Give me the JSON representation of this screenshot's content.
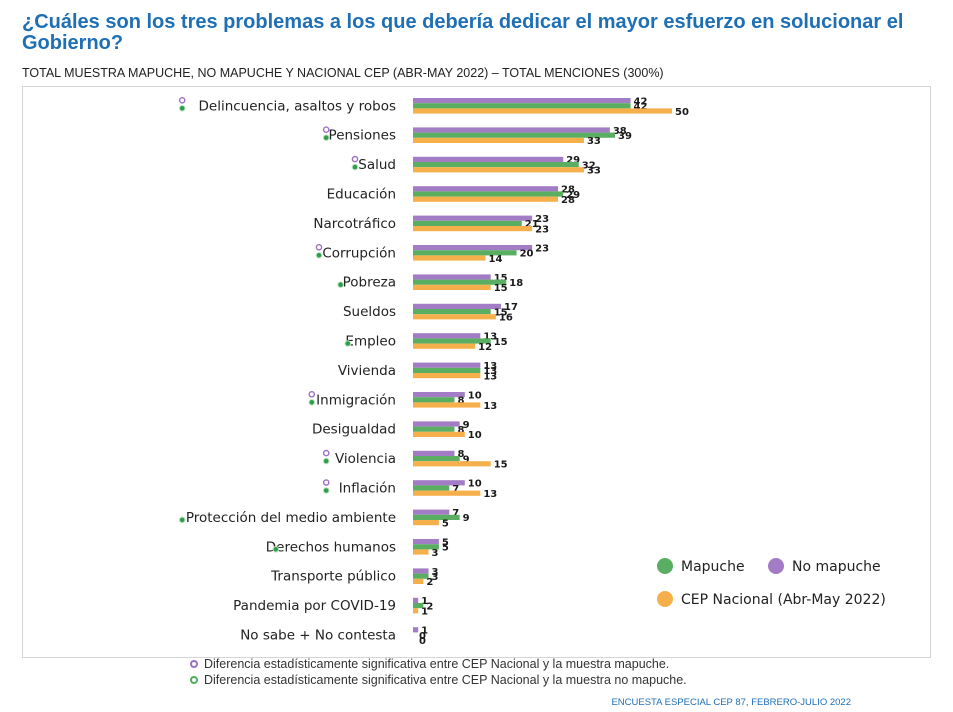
{
  "title": "¿Cuáles son los tres problemas a los que debería dedicar el mayor esfuerzo en solucionar el Gobierno?",
  "subtitle": "TOTAL MUESTRA MAPUCHE, NO MAPUCHE Y NACIONAL CEP (ABR-MAY 2022)  – TOTAL MENCIONES (300%)",
  "footnotes": {
    "purple": "Diferencia estadísticamente significativa entre CEP Nacional y la muestra mapuche.",
    "green": "Diferencia estadísticamente significativa entre CEP Nacional y la muestra no mapuche."
  },
  "source": "ENCUESTA ESPECIAL CEP 87, FEBRERO-JULIO 2022",
  "colors": {
    "mapuche": "#5aae61",
    "no_mapuche": "#a37cc6",
    "cep": "#f6b04b",
    "title": "#1f6fb5",
    "marker_purple": "#9b6fc4",
    "marker_green": "#2f9e4a"
  },
  "chart_data": {
    "type": "bar",
    "orientation": "horizontal",
    "categories": [
      "Delincuencia, asaltos y robos",
      "Pensiones",
      "Salud",
      "Educación",
      "Narcotráfico",
      "Corrupción",
      "Pobreza",
      "Sueldos",
      "Empleo",
      "Vivienda",
      "Inmigración",
      "Desigualdad",
      "Violencia",
      "Inflación",
      "Protección del medio ambiente",
      "Derechos humanos",
      "Transporte público",
      "Pandemia por COVID-19",
      "No sabe + No contesta"
    ],
    "series": [
      {
        "name": "No mapuche",
        "values": [
          42,
          38,
          29,
          28,
          23,
          23,
          15,
          17,
          13,
          13,
          10,
          9,
          8,
          10,
          7,
          5,
          3,
          1,
          1
        ]
      },
      {
        "name": "Mapuche",
        "values": [
          42,
          39,
          32,
          29,
          21,
          20,
          18,
          15,
          15,
          13,
          8,
          8,
          9,
          7,
          9,
          5,
          3,
          2,
          0
        ]
      },
      {
        "name": "CEP Nacional (Abr-May 2022)",
        "values": [
          50,
          33,
          33,
          28,
          23,
          14,
          15,
          16,
          12,
          13,
          13,
          10,
          15,
          13,
          5,
          3,
          2,
          1,
          0
        ]
      }
    ],
    "significance_markers": {
      "purple": [
        true,
        true,
        true,
        false,
        false,
        true,
        false,
        false,
        false,
        false,
        true,
        false,
        true,
        true,
        false,
        false,
        false,
        false,
        false
      ],
      "green": [
        true,
        true,
        true,
        false,
        false,
        true,
        true,
        false,
        true,
        false,
        true,
        false,
        true,
        true,
        true,
        true,
        false,
        false,
        false
      ]
    },
    "legend": {
      "items": [
        "Mapuche",
        "No mapuche",
        "CEP Nacional (Abr-May 2022)"
      ],
      "position": "bottom-right"
    },
    "xlim": [
      0,
      55
    ],
    "grid": false
  }
}
